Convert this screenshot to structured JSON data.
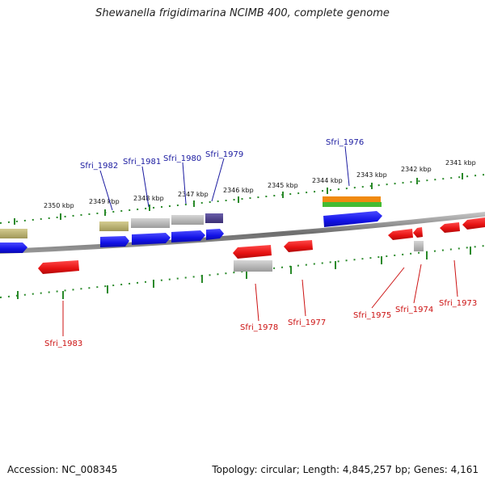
{
  "title": "Shewanella frigidimarina NCIMB 400, complete genome",
  "accession": "Accession: NC_008345",
  "summary": "Topology: circular; Length: 4,845,257 bp; Genes: 4,161",
  "scale_labels": [
    "2341 kbp",
    "2342 kbp",
    "2343 kbp",
    "2344 kbp",
    "2345 kbp",
    "2346 kbp",
    "2347 kbp",
    "2348 kbp",
    "2349 kbp",
    "2350 kbp"
  ],
  "forward_gene_labels": [
    "Sfri_1982",
    "Sfri_1981",
    "Sfri_1980",
    "Sfri_1979",
    "Sfri_1976"
  ],
  "reverse_gene_labels": [
    "Sfri_1983",
    "Sfri_1978",
    "Sfri_1977",
    "Sfri_1975",
    "Sfri_1974",
    "Sfri_1973"
  ],
  "colors": {
    "backbone": "#8a8a8a",
    "forward_gene": "#1515e0",
    "reverse_gene": "#e01515",
    "feature_khaki": "#b8b070",
    "feature_grey": "#b4b4b4",
    "feature_purple": "#4a3e8a",
    "feature_orange": "#f08a10",
    "feature_green": "#44bb33",
    "tick": "#2a8a2a",
    "forward_label": "#1a1aa0",
    "reverse_label": "#cc1111"
  }
}
